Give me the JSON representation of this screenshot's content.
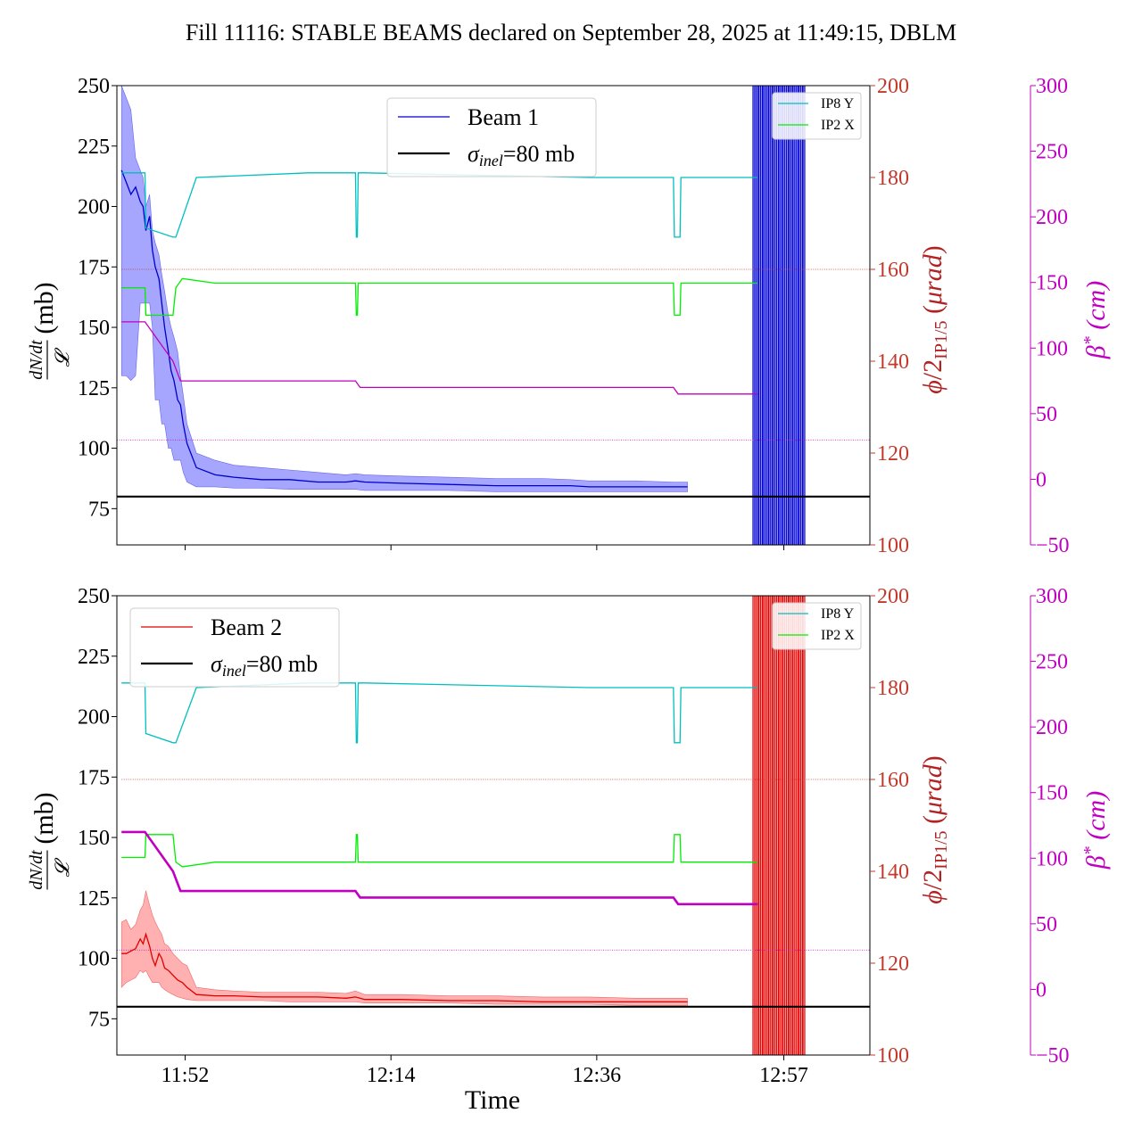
{
  "title": "Fill 11116: STABLE BEAMS declared on September 28, 2025 at 11:49:15, DBLM",
  "colors": {
    "beam1": "#0000cc",
    "beam1_fill": "#a6a6ff",
    "beam2": "#e00000",
    "beam2_fill": "#ffb0b0",
    "ip8y": "#00bfbf",
    "ip2x": "#00ee00",
    "beta": "#c000c0",
    "phi_axis": "#b22222",
    "sigma": "#000000"
  },
  "chart_data": [
    {
      "type": "line",
      "panel": "top",
      "xlabel": "",
      "x_ticks": [
        "11:52",
        "12:14",
        "12:36",
        "12:57"
      ],
      "xlim_min": [
        109.5,
        190.0
      ],
      "ylabel_main": "dN/dt / 𝓛 (mb)",
      "ylabel_phi": "ϕ/2IP1/5 (μrad)",
      "ylabel_beta": "β* (cm)",
      "ylim": [
        60,
        250
      ],
      "y_ticks": [
        75,
        100,
        125,
        150,
        175,
        200,
        225,
        250
      ],
      "phi_ylim": [
        100,
        200
      ],
      "phi_ticks": [
        100,
        120,
        140,
        160,
        180,
        200
      ],
      "beta_ylim": [
        -50,
        300
      ],
      "beta_ticks": [
        -50,
        0,
        50,
        100,
        150,
        200,
        250,
        300
      ],
      "sigma_inel_mb": 80,
      "phi_reference": 160,
      "beta_reference": 30,
      "legend_main": [
        "Beam 1",
        "σinel=80 mb"
      ],
      "legend_main_position": "upper-center",
      "legend_small": [
        "IP8 Y",
        "IP2 X"
      ],
      "legend_small_position": "top-right",
      "series": [
        {
          "name": "Beam 1",
          "axis": "main",
          "x": [
            110.0,
            110.5,
            111.0,
            111.5,
            112.0,
            112.3,
            112.6,
            113.0,
            113.3,
            113.6,
            114.0,
            114.3,
            114.6,
            115.0,
            115.3,
            115.6,
            116.0,
            116.3,
            116.6,
            117.0,
            118.0,
            120.0,
            122.0,
            125.0,
            128.0,
            131.0,
            134.0,
            135.0,
            136.0,
            140.0,
            145.0,
            150.0,
            155.0,
            158.0,
            160.0,
            165.0,
            169.0,
            170.5
          ],
          "y": [
            215,
            210,
            205,
            208,
            202,
            200,
            190,
            196,
            182,
            175,
            170,
            160,
            150,
            140,
            132,
            128,
            120,
            118,
            110,
            102,
            92,
            89,
            88,
            87,
            87,
            86,
            86,
            86.5,
            86,
            85.5,
            85,
            84.5,
            84.5,
            84.5,
            84,
            84,
            84,
            84
          ],
          "band_upper": [
            250,
            245,
            240,
            220,
            215,
            212,
            200,
            205,
            190,
            185,
            180,
            172,
            165,
            155,
            150,
            146,
            140,
            130,
            122,
            110,
            98,
            95,
            93,
            92,
            91,
            90,
            89,
            89.5,
            89,
            88.5,
            88,
            87.5,
            87.5,
            87,
            86.5,
            86.5,
            86,
            86
          ],
          "band_lower": [
            130,
            130,
            128,
            130,
            160,
            160,
            160,
            160,
            150,
            120,
            120,
            110,
            110,
            100,
            100,
            95,
            95,
            95,
            90,
            86,
            84,
            84,
            83.5,
            83.5,
            83,
            83,
            83,
            83,
            82.5,
            82.5,
            82.5,
            82,
            82,
            82,
            82,
            82,
            82,
            82
          ]
        },
        {
          "name": "IP8 Y",
          "axis": "phi",
          "x": [
            110.0,
            112.5,
            112.6,
            115.5,
            115.8,
            118.0,
            130.0,
            135.0,
            135.1,
            135.2,
            135.3,
            136.0,
            160.0,
            169.0,
            169.1,
            169.7,
            169.8,
            178.0
          ],
          "y": [
            181,
            181,
            169,
            167,
            167,
            180,
            181,
            181,
            167,
            167,
            181,
            181,
            180,
            180,
            167,
            167,
            180,
            180
          ]
        },
        {
          "name": "IP2 X",
          "axis": "phi",
          "x": [
            110.0,
            112.5,
            112.6,
            115.5,
            115.8,
            116.5,
            120.0,
            135.0,
            135.1,
            135.2,
            135.3,
            136.0,
            160.0,
            169.0,
            169.1,
            169.7,
            169.8,
            178.0
          ],
          "y": [
            156,
            156,
            150,
            150,
            156,
            158,
            157,
            157,
            150,
            150,
            157,
            157,
            157,
            157,
            150,
            150,
            157,
            157
          ]
        },
        {
          "name": "β*",
          "axis": "beta",
          "x": [
            110.0,
            112.5,
            115.5,
            116.3,
            118.0,
            135.0,
            135.5,
            160.0,
            169.0,
            169.5,
            178.0
          ],
          "y": [
            120,
            120,
            90,
            75,
            75,
            75,
            70,
            70,
            70,
            65,
            65
          ]
        }
      ]
    },
    {
      "type": "line",
      "panel": "bottom",
      "xlabel": "Time",
      "x_ticks": [
        "11:52",
        "12:14",
        "12:36",
        "12:57"
      ],
      "xlim_min": [
        109.5,
        190.0
      ],
      "ylabel_main": "dN/dt / 𝓛 (mb)",
      "ylabel_phi": "ϕ/2IP1/5 (μrad)",
      "ylabel_beta": "β* (cm)",
      "ylim": [
        60,
        250
      ],
      "y_ticks": [
        75,
        100,
        125,
        150,
        175,
        200,
        225,
        250
      ],
      "phi_ylim": [
        100,
        200
      ],
      "phi_ticks": [
        100,
        120,
        140,
        160,
        180,
        200
      ],
      "beta_ylim": [
        -50,
        300
      ],
      "beta_ticks": [
        -50,
        0,
        50,
        100,
        150,
        200,
        250,
        300
      ],
      "sigma_inel_mb": 80,
      "phi_reference": 160,
      "beta_reference": 30,
      "legend_main": [
        "Beam 2",
        "σinel=80 mb"
      ],
      "legend_main_position": "upper-left",
      "legend_small": [
        "IP8 Y",
        "IP2 X"
      ],
      "legend_small_position": "top-right",
      "series": [
        {
          "name": "Beam 2",
          "axis": "main",
          "x": [
            110.0,
            110.5,
            111.0,
            111.5,
            112.0,
            112.3,
            112.6,
            113.0,
            113.3,
            113.6,
            114.0,
            114.3,
            114.6,
            115.0,
            115.5,
            116.0,
            116.5,
            117.0,
            118.0,
            120.0,
            122.0,
            125.0,
            128.0,
            131.0,
            134.0,
            135.0,
            136.0,
            140.0,
            145.0,
            150.0,
            155.0,
            160.0,
            165.0,
            168.0,
            169.0,
            170.5
          ],
          "y": [
            102,
            102,
            103,
            104,
            108,
            106,
            110,
            105,
            100,
            97,
            102,
            100,
            96,
            95,
            93,
            91,
            90,
            88,
            85,
            84.5,
            84.5,
            84,
            84,
            84,
            83.5,
            84,
            83,
            83,
            82.5,
            82.5,
            82,
            82,
            82,
            82,
            82,
            82
          ],
          "band_upper": [
            115,
            116,
            112,
            114,
            120,
            122,
            128,
            122,
            118,
            115,
            112,
            110,
            106,
            105,
            102,
            100,
            98,
            97,
            88,
            87,
            86.5,
            86,
            86,
            86,
            85.5,
            86.5,
            85,
            85,
            84.5,
            84.5,
            84,
            84,
            83.5,
            83.5,
            83.5,
            83.5
          ],
          "band_lower": [
            88,
            90,
            91,
            92,
            95,
            94,
            95,
            92,
            90,
            90,
            90,
            88,
            87,
            86,
            85,
            84,
            83.5,
            83,
            82.5,
            82.5,
            82.5,
            82.5,
            82,
            82,
            82,
            82,
            81.5,
            81.5,
            81.5,
            81,
            81,
            81,
            80.5,
            80.5,
            80.5,
            80.5
          ]
        },
        {
          "name": "IP8 Y",
          "axis": "phi",
          "x": [
            110.0,
            112.5,
            112.6,
            115.5,
            115.8,
            118.0,
            130.0,
            135.0,
            135.1,
            135.2,
            135.3,
            136.0,
            160.0,
            169.0,
            169.1,
            169.7,
            169.8,
            178.0
          ],
          "y": [
            181,
            181,
            170,
            168,
            168,
            180,
            181,
            181,
            168,
            168,
            181,
            181,
            180,
            180,
            168,
            168,
            180,
            180
          ]
        },
        {
          "name": "IP2 X",
          "axis": "phi",
          "x": [
            110.0,
            112.5,
            112.6,
            115.5,
            115.8,
            116.5,
            120.0,
            135.0,
            135.1,
            135.2,
            135.3,
            136.0,
            160.0,
            169.0,
            169.1,
            169.7,
            169.8,
            178.0
          ],
          "y": [
            143,
            143,
            148,
            148,
            142,
            141,
            142,
            142,
            148,
            148,
            142,
            142,
            142,
            142,
            148,
            148,
            142,
            142
          ]
        },
        {
          "name": "β*",
          "axis": "beta",
          "x": [
            110.0,
            112.5,
            115.5,
            116.3,
            118.0,
            135.0,
            135.5,
            160.0,
            169.0,
            169.5,
            178.0
          ],
          "y": [
            120,
            120,
            90,
            75,
            75,
            75,
            70,
            70,
            70,
            65,
            65
          ]
        }
      ]
    }
  ]
}
